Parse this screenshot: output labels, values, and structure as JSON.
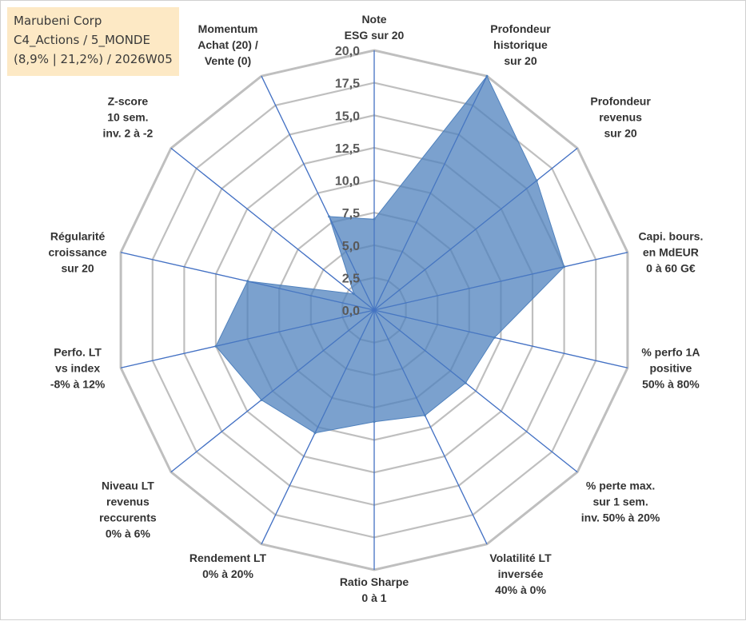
{
  "title_box": {
    "line1": "Marubeni Corp",
    "line2": "C4_Actions / 5_MONDE",
    "line3": "(8,9% | 21,2%) / 2026W05",
    "background": "#fde9c5"
  },
  "chart_data": {
    "type": "radar",
    "rmin": 0,
    "rmax": 20,
    "tick_step": 2.5,
    "tick_labels": [
      "0,0",
      "2,5",
      "5,0",
      "7,5",
      "10,0",
      "12,5",
      "15,0",
      "17,5",
      "20,0"
    ],
    "axes": [
      {
        "label": [
          "Note",
          "ESG sur 20"
        ],
        "value": 7.0
      },
      {
        "label": [
          "Profondeur",
          "historique",
          "sur 20"
        ],
        "value": 20.0
      },
      {
        "label": [
          "Profondeur",
          "revenus",
          "sur 20"
        ],
        "value": 16.0
      },
      {
        "label": [
          "Capi. bours.",
          "en MdEUR",
          "0 à 60 G€"
        ],
        "value": 15.0
      },
      {
        "label": [
          "% perfo 1A",
          "positive",
          "50% à 80%"
        ],
        "value": 9.5
      },
      {
        "label": [
          "% perte max.",
          "sur 1 sem.",
          "inv. 50% à 20%"
        ],
        "value": 9.0
      },
      {
        "label": [
          "Volatilité LT",
          "inversée",
          "40% à 0%"
        ],
        "value": 9.0
      },
      {
        "label": [
          "Ratio Sharpe",
          "0 à 1"
        ],
        "value": 8.6
      },
      {
        "label": [
          "Rendement LT",
          "0% à 20%"
        ],
        "value": 10.5
      },
      {
        "label": [
          "Niveau LT",
          "revenus",
          "reccurents",
          "0% à 6%"
        ],
        "value": 11.1
      },
      {
        "label": [
          "Perfo. LT",
          "vs index",
          "-8% à 12%"
        ],
        "value": 12.5
      },
      {
        "label": [
          "Régularité",
          "croissance",
          "sur 20"
        ],
        "value": 10.0
      },
      {
        "label": [
          "Z-score",
          "10 sem.",
          "inv. 2 à -2"
        ],
        "value": 2.0
      },
      {
        "label": [
          "Momentum",
          "Achat (20) /",
          "Vente (0)"
        ],
        "value": 8.0
      }
    ],
    "series": [
      {
        "name": "Marubeni Corp",
        "color": "#4f81bd"
      }
    ],
    "fill_color": "#4f81bd",
    "grid_color": "#bfbfbf",
    "spoke_color": "#4472c4"
  }
}
